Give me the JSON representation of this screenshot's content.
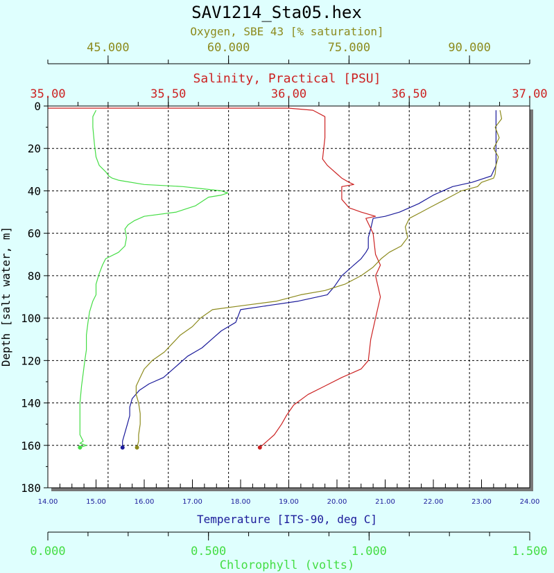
{
  "chart_data": {
    "type": "line",
    "title": "SAV1214_Sta05.hex",
    "colors": {
      "background": "#dffffe",
      "plot_area": "#ffffff",
      "oxygen": "#8c8a1c",
      "salinity": "#cc2222",
      "temperature": "#1a1a9a",
      "chlorophyll": "#44dd44",
      "depth_axis": "#000000"
    },
    "grid": true,
    "y_axis": {
      "label": "Depth [salt water, m]",
      "range": [
        0,
        180
      ],
      "inverted": true,
      "ticks": [
        "0",
        "20",
        "40",
        "60",
        "80",
        "100",
        "120",
        "140",
        "160",
        "180"
      ]
    },
    "x_axes": {
      "oxygen": {
        "label": "Oxygen, SBE 43 [% saturation]",
        "range": [
          37.5,
          97.5
        ],
        "tick_values": [
          45,
          60,
          75,
          90
        ],
        "tick_labels": [
          "45.000",
          "60.000",
          "75.000",
          "90.000"
        ]
      },
      "salinity": {
        "label": "Salinity, Practical [PSU]",
        "range": [
          35.0,
          37.0
        ],
        "tick_values": [
          35.0,
          35.5,
          36.0,
          36.5,
          37.0
        ],
        "tick_labels": [
          "35.00",
          "35.50",
          "36.00",
          "36.50",
          "37.00"
        ]
      },
      "temperature": {
        "label": "Temperature [ITS-90, deg C]",
        "range": [
          14.0,
          24.0
        ],
        "tick_values": [
          14,
          15,
          16,
          17,
          18,
          19,
          20,
          21,
          22,
          23,
          24
        ],
        "tick_labels": [
          "14.00",
          "15.00",
          "16.00",
          "17.00",
          "18.00",
          "19.00",
          "20.00",
          "21.00",
          "22.00",
          "23.00",
          "24.00"
        ]
      },
      "chlorophyll": {
        "label": "Chlorophyll (volts)",
        "range": [
          0.0,
          1.5
        ],
        "tick_values": [
          0.0,
          0.5,
          1.0,
          1.5
        ],
        "tick_labels": [
          "0.000",
          "0.500",
          "1.000",
          "1.500"
        ]
      }
    },
    "series": [
      {
        "name": "Temperature",
        "axis": "temperature",
        "points": [
          [
            23.3,
            2
          ],
          [
            23.3,
            10
          ],
          [
            23.3,
            20
          ],
          [
            23.3,
            28
          ],
          [
            23.2,
            33
          ],
          [
            22.8,
            36
          ],
          [
            22.4,
            38
          ],
          [
            22.0,
            42
          ],
          [
            21.7,
            46
          ],
          [
            21.3,
            50
          ],
          [
            21.0,
            52
          ],
          [
            20.75,
            53
          ],
          [
            20.7,
            58
          ],
          [
            20.65,
            62
          ],
          [
            20.65,
            67
          ],
          [
            20.6,
            69
          ],
          [
            20.5,
            72
          ],
          [
            20.35,
            75
          ],
          [
            20.1,
            80
          ],
          [
            19.95,
            85
          ],
          [
            19.8,
            89
          ],
          [
            19.2,
            92
          ],
          [
            18.6,
            94
          ],
          [
            18.0,
            96
          ],
          [
            17.9,
            102
          ],
          [
            17.6,
            106
          ],
          [
            17.4,
            110
          ],
          [
            17.2,
            114
          ],
          [
            16.9,
            118
          ],
          [
            16.7,
            122
          ],
          [
            16.6,
            124
          ],
          [
            16.5,
            126
          ],
          [
            16.4,
            128
          ],
          [
            16.1,
            131
          ],
          [
            15.9,
            134
          ],
          [
            15.75,
            138
          ],
          [
            15.7,
            142
          ],
          [
            15.7,
            146
          ],
          [
            15.65,
            150
          ],
          [
            15.6,
            154
          ],
          [
            15.55,
            158
          ],
          [
            15.55,
            161
          ]
        ]
      },
      {
        "name": "Salinity",
        "axis": "salinity",
        "points": [
          [
            35.0,
            1
          ],
          [
            36.0,
            1
          ],
          [
            36.1,
            2
          ],
          [
            36.15,
            5
          ],
          [
            36.15,
            15
          ],
          [
            36.14,
            25
          ],
          [
            36.16,
            28
          ],
          [
            36.18,
            30
          ],
          [
            36.2,
            32
          ],
          [
            36.22,
            34
          ],
          [
            36.25,
            36
          ],
          [
            36.27,
            37
          ],
          [
            36.22,
            38
          ],
          [
            36.22,
            44
          ],
          [
            36.25,
            48
          ],
          [
            36.3,
            50
          ],
          [
            36.36,
            52
          ],
          [
            36.32,
            53
          ],
          [
            36.35,
            60
          ],
          [
            36.36,
            70
          ],
          [
            36.38,
            75
          ],
          [
            36.36,
            80
          ],
          [
            36.38,
            90
          ],
          [
            36.36,
            100
          ],
          [
            36.34,
            110
          ],
          [
            36.33,
            120
          ],
          [
            36.3,
            124
          ],
          [
            36.22,
            128
          ],
          [
            36.15,
            132
          ],
          [
            36.08,
            136
          ],
          [
            36.02,
            141
          ],
          [
            35.99,
            146
          ],
          [
            35.97,
            150
          ],
          [
            35.94,
            155
          ],
          [
            35.91,
            158
          ],
          [
            35.89,
            160
          ],
          [
            35.88,
            161
          ]
        ]
      },
      {
        "name": "Oxygen",
        "axis": "oxygen",
        "points": [
          [
            93.8,
            2
          ],
          [
            94.0,
            6
          ],
          [
            93.2,
            10
          ],
          [
            93.7,
            15
          ],
          [
            93.0,
            20
          ],
          [
            93.6,
            24
          ],
          [
            93.3,
            28
          ],
          [
            93.2,
            32
          ],
          [
            93.0,
            34
          ],
          [
            91.5,
            36
          ],
          [
            91.0,
            38
          ],
          [
            89.0,
            40
          ],
          [
            88.0,
            42
          ],
          [
            86.5,
            45
          ],
          [
            85.0,
            48
          ],
          [
            84.0,
            50
          ],
          [
            82.5,
            53
          ],
          [
            82.0,
            57
          ],
          [
            82.3,
            62
          ],
          [
            81.5,
            66
          ],
          [
            80.0,
            69
          ],
          [
            79.0,
            72
          ],
          [
            78.0,
            76
          ],
          [
            76.5,
            80
          ],
          [
            74.5,
            84
          ],
          [
            72.0,
            87
          ],
          [
            69.0,
            89
          ],
          [
            66.0,
            92
          ],
          [
            62.0,
            94
          ],
          [
            58.0,
            96
          ],
          [
            56.5,
            100
          ],
          [
            55.5,
            104
          ],
          [
            54.0,
            108
          ],
          [
            53.0,
            112
          ],
          [
            52.0,
            116
          ],
          [
            50.5,
            120
          ],
          [
            49.5,
            124
          ],
          [
            49.0,
            128
          ],
          [
            48.5,
            132
          ],
          [
            48.5,
            136
          ],
          [
            48.8,
            140
          ],
          [
            49.0,
            145
          ],
          [
            49.0,
            150
          ],
          [
            48.8,
            155
          ],
          [
            48.8,
            158
          ],
          [
            48.6,
            161
          ]
        ]
      },
      {
        "name": "Chlorophyll",
        "axis": "chlorophyll",
        "points": [
          [
            0.15,
            2
          ],
          [
            0.14,
            5
          ],
          [
            0.14,
            10
          ],
          [
            0.145,
            18
          ],
          [
            0.15,
            24
          ],
          [
            0.16,
            28
          ],
          [
            0.18,
            31
          ],
          [
            0.19,
            33
          ],
          [
            0.2,
            34
          ],
          [
            0.22,
            35
          ],
          [
            0.3,
            37
          ],
          [
            0.42,
            38
          ],
          [
            0.48,
            39
          ],
          [
            0.54,
            40
          ],
          [
            0.56,
            41
          ],
          [
            0.54,
            42
          ],
          [
            0.5,
            43
          ],
          [
            0.48,
            45
          ],
          [
            0.46,
            47
          ],
          [
            0.4,
            50
          ],
          [
            0.3,
            52
          ],
          [
            0.27,
            54
          ],
          [
            0.25,
            56
          ],
          [
            0.24,
            58
          ],
          [
            0.245,
            62
          ],
          [
            0.24,
            66
          ],
          [
            0.22,
            69
          ],
          [
            0.18,
            72
          ],
          [
            0.17,
            75
          ],
          [
            0.16,
            79
          ],
          [
            0.15,
            84
          ],
          [
            0.15,
            89
          ],
          [
            0.14,
            92
          ],
          [
            0.13,
            97
          ],
          [
            0.125,
            102
          ],
          [
            0.12,
            108
          ],
          [
            0.12,
            115
          ],
          [
            0.115,
            120
          ],
          [
            0.11,
            126
          ],
          [
            0.105,
            132
          ],
          [
            0.1,
            140
          ],
          [
            0.1,
            150
          ],
          [
            0.1,
            155
          ],
          [
            0.11,
            158
          ],
          [
            0.1,
            159
          ],
          [
            0.12,
            160
          ],
          [
            0.1,
            161
          ]
        ]
      }
    ]
  }
}
